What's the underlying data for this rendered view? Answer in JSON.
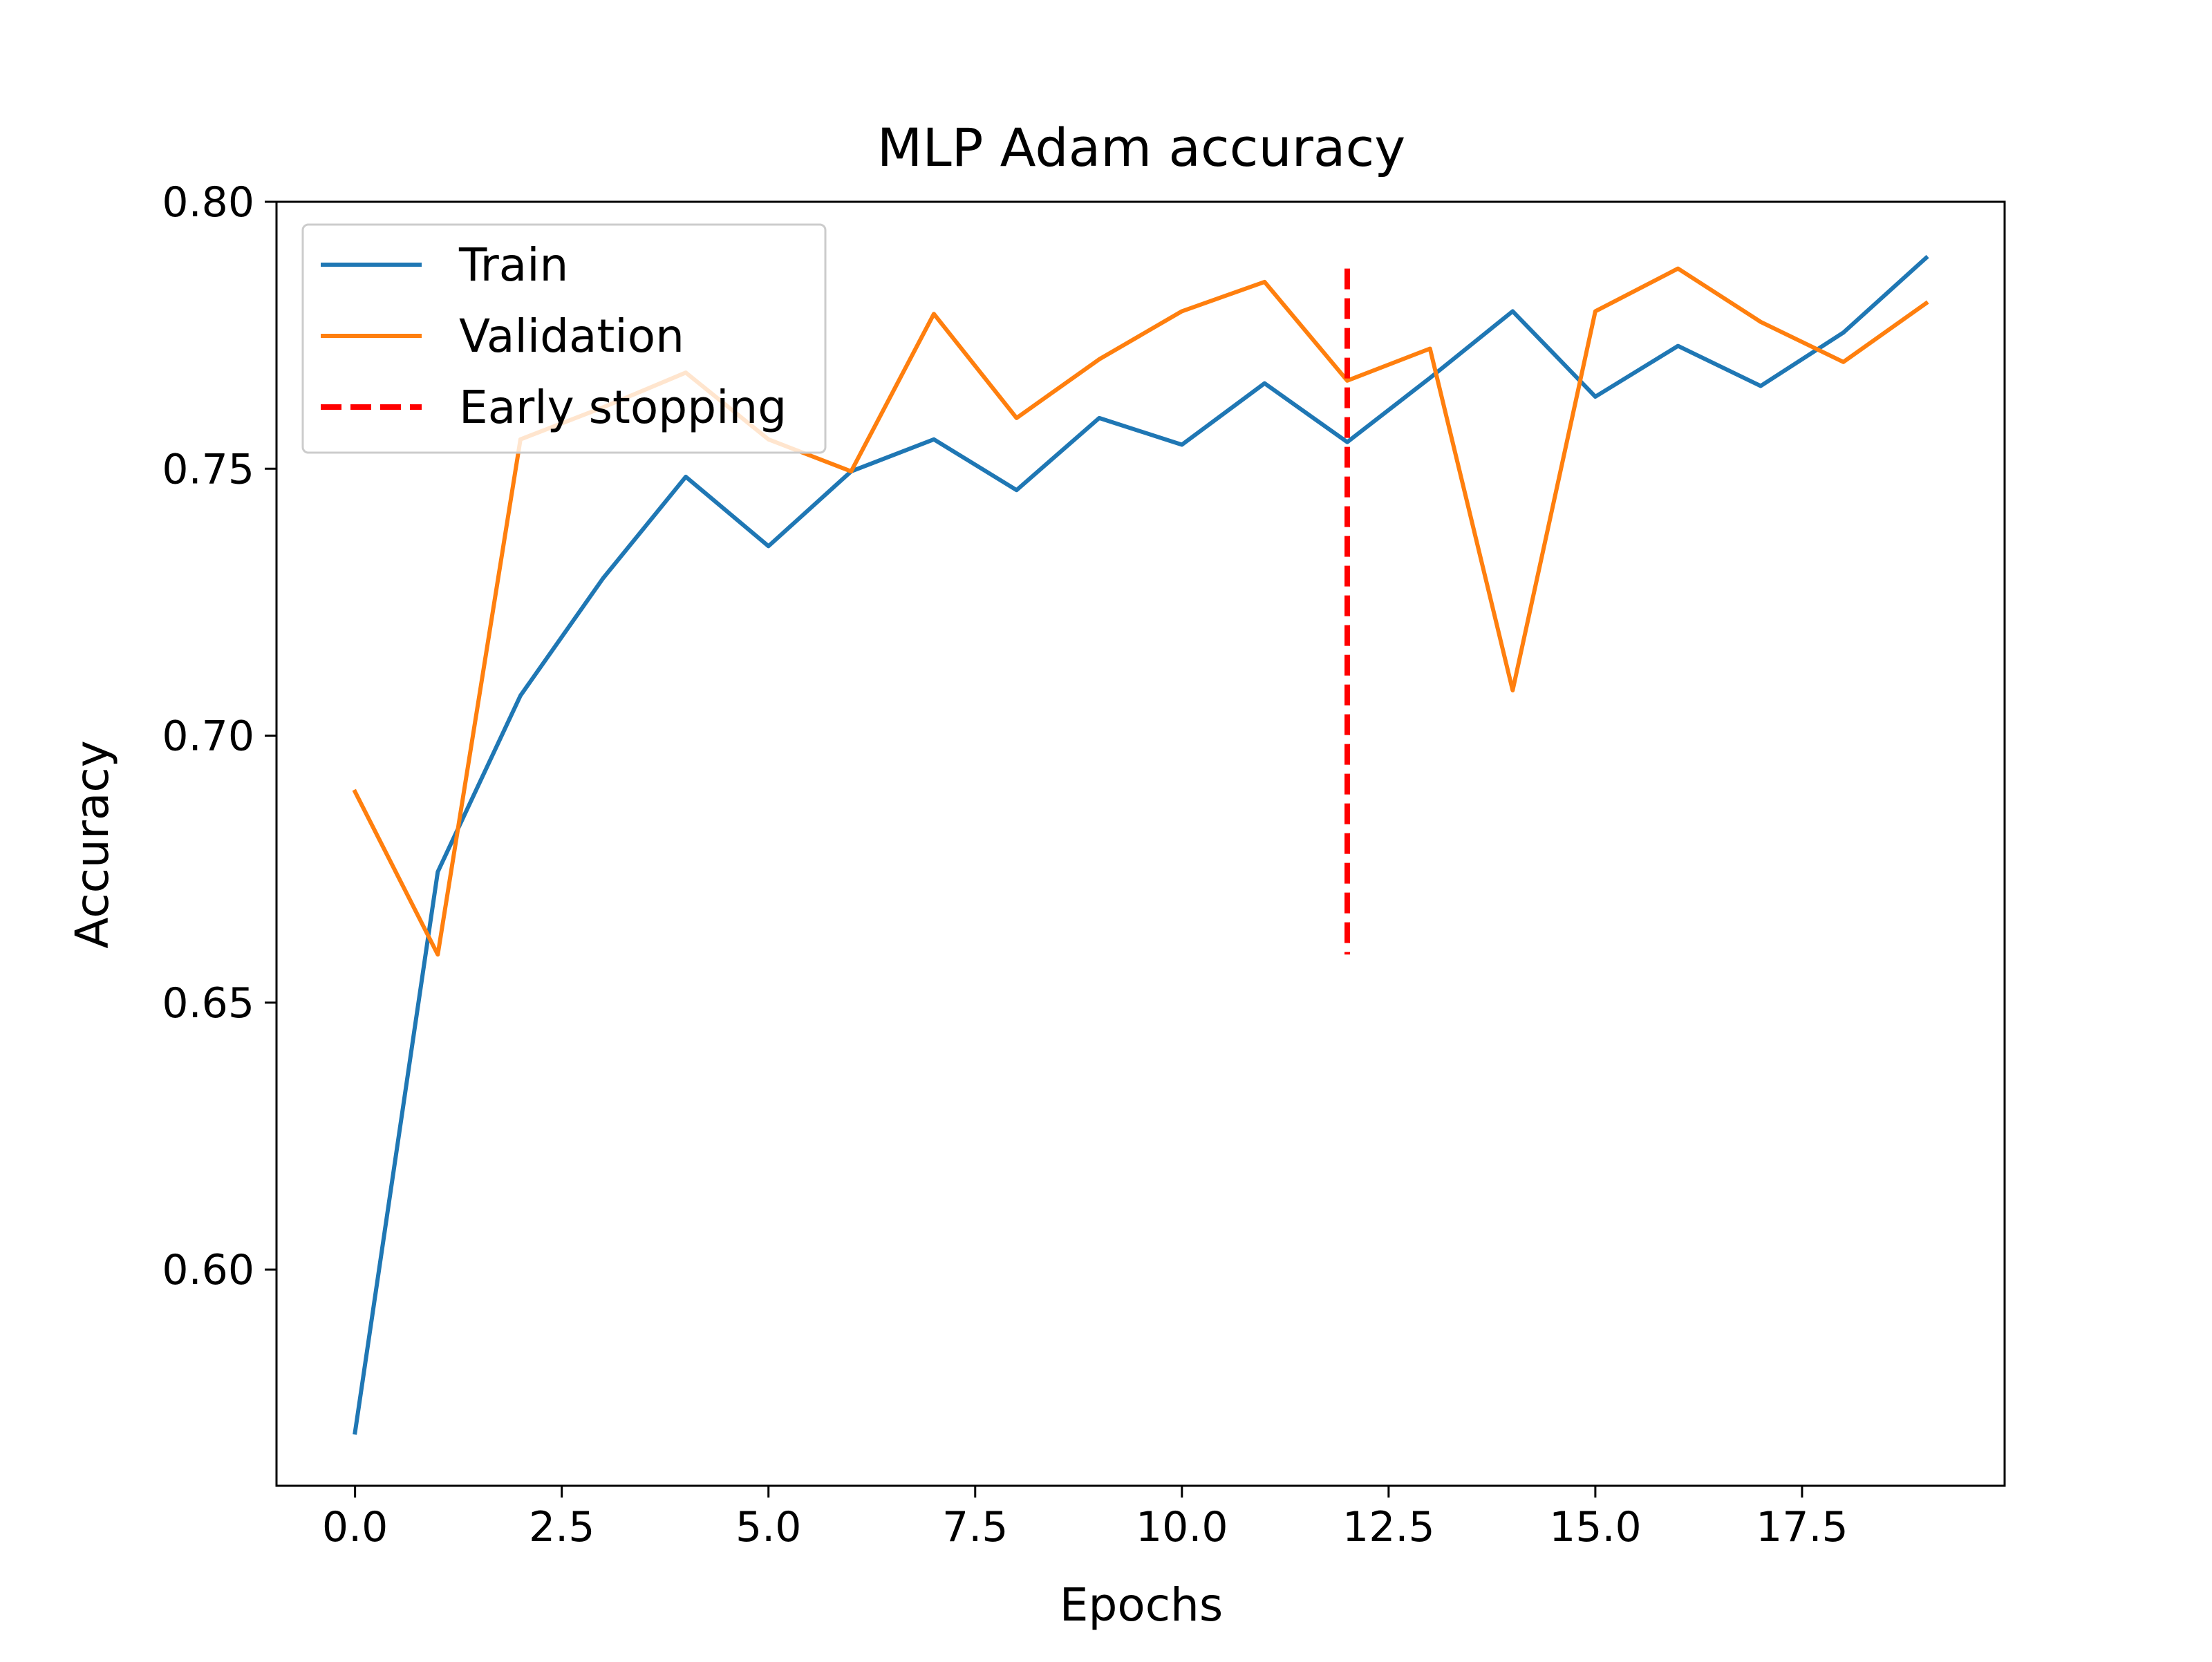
{
  "chart_data": {
    "type": "line",
    "title": "MLP Adam accuracy",
    "xlabel": "Epochs",
    "ylabel": "Accuracy",
    "xlim": [
      -0.95,
      19.95
    ],
    "ylim": [
      0.5595,
      0.8
    ],
    "x_ticks": [
      0,
      2.5,
      5,
      7.5,
      10,
      12.5,
      15,
      17.5
    ],
    "x_tick_labels": [
      "0.0",
      "2.5",
      "5.0",
      "7.5",
      "10.0",
      "12.5",
      "15.0",
      "17.5"
    ],
    "y_ticks": [
      0.6,
      0.65,
      0.7,
      0.75,
      0.8
    ],
    "y_tick_labels": [
      "0.60",
      "0.65",
      "0.70",
      "0.75",
      "0.80"
    ],
    "grid": false,
    "legend_position": "top-left",
    "x": [
      0,
      1,
      2,
      3,
      4,
      5,
      6,
      7,
      8,
      9,
      10,
      11,
      12,
      13,
      14,
      15,
      16,
      17,
      18,
      19
    ],
    "series": [
      {
        "name": "Train",
        "color": "#1f77b4",
        "values": [
          0.5695,
          0.6745,
          0.7075,
          0.7295,
          0.7485,
          0.7355,
          0.7495,
          0.7555,
          0.746,
          0.7595,
          0.7545,
          0.766,
          0.755,
          0.767,
          0.7795,
          0.7635,
          0.773,
          0.7655,
          0.7755,
          0.7895
        ]
      },
      {
        "name": "Validation",
        "color": "#ff7f0e",
        "values": [
          0.6895,
          0.659,
          0.7555,
          0.7615,
          0.768,
          0.7555,
          0.7495,
          0.779,
          0.7595,
          0.7705,
          0.7795,
          0.785,
          0.7665,
          0.7725,
          0.7085,
          0.7795,
          0.7875,
          0.7775,
          0.77,
          0.781
        ]
      }
    ],
    "vlines": [
      {
        "name": "Early stopping",
        "x": 12,
        "ymin": 0.659,
        "ymax": 0.7875,
        "color": "#ff0000",
        "style": "dashed"
      }
    ]
  }
}
